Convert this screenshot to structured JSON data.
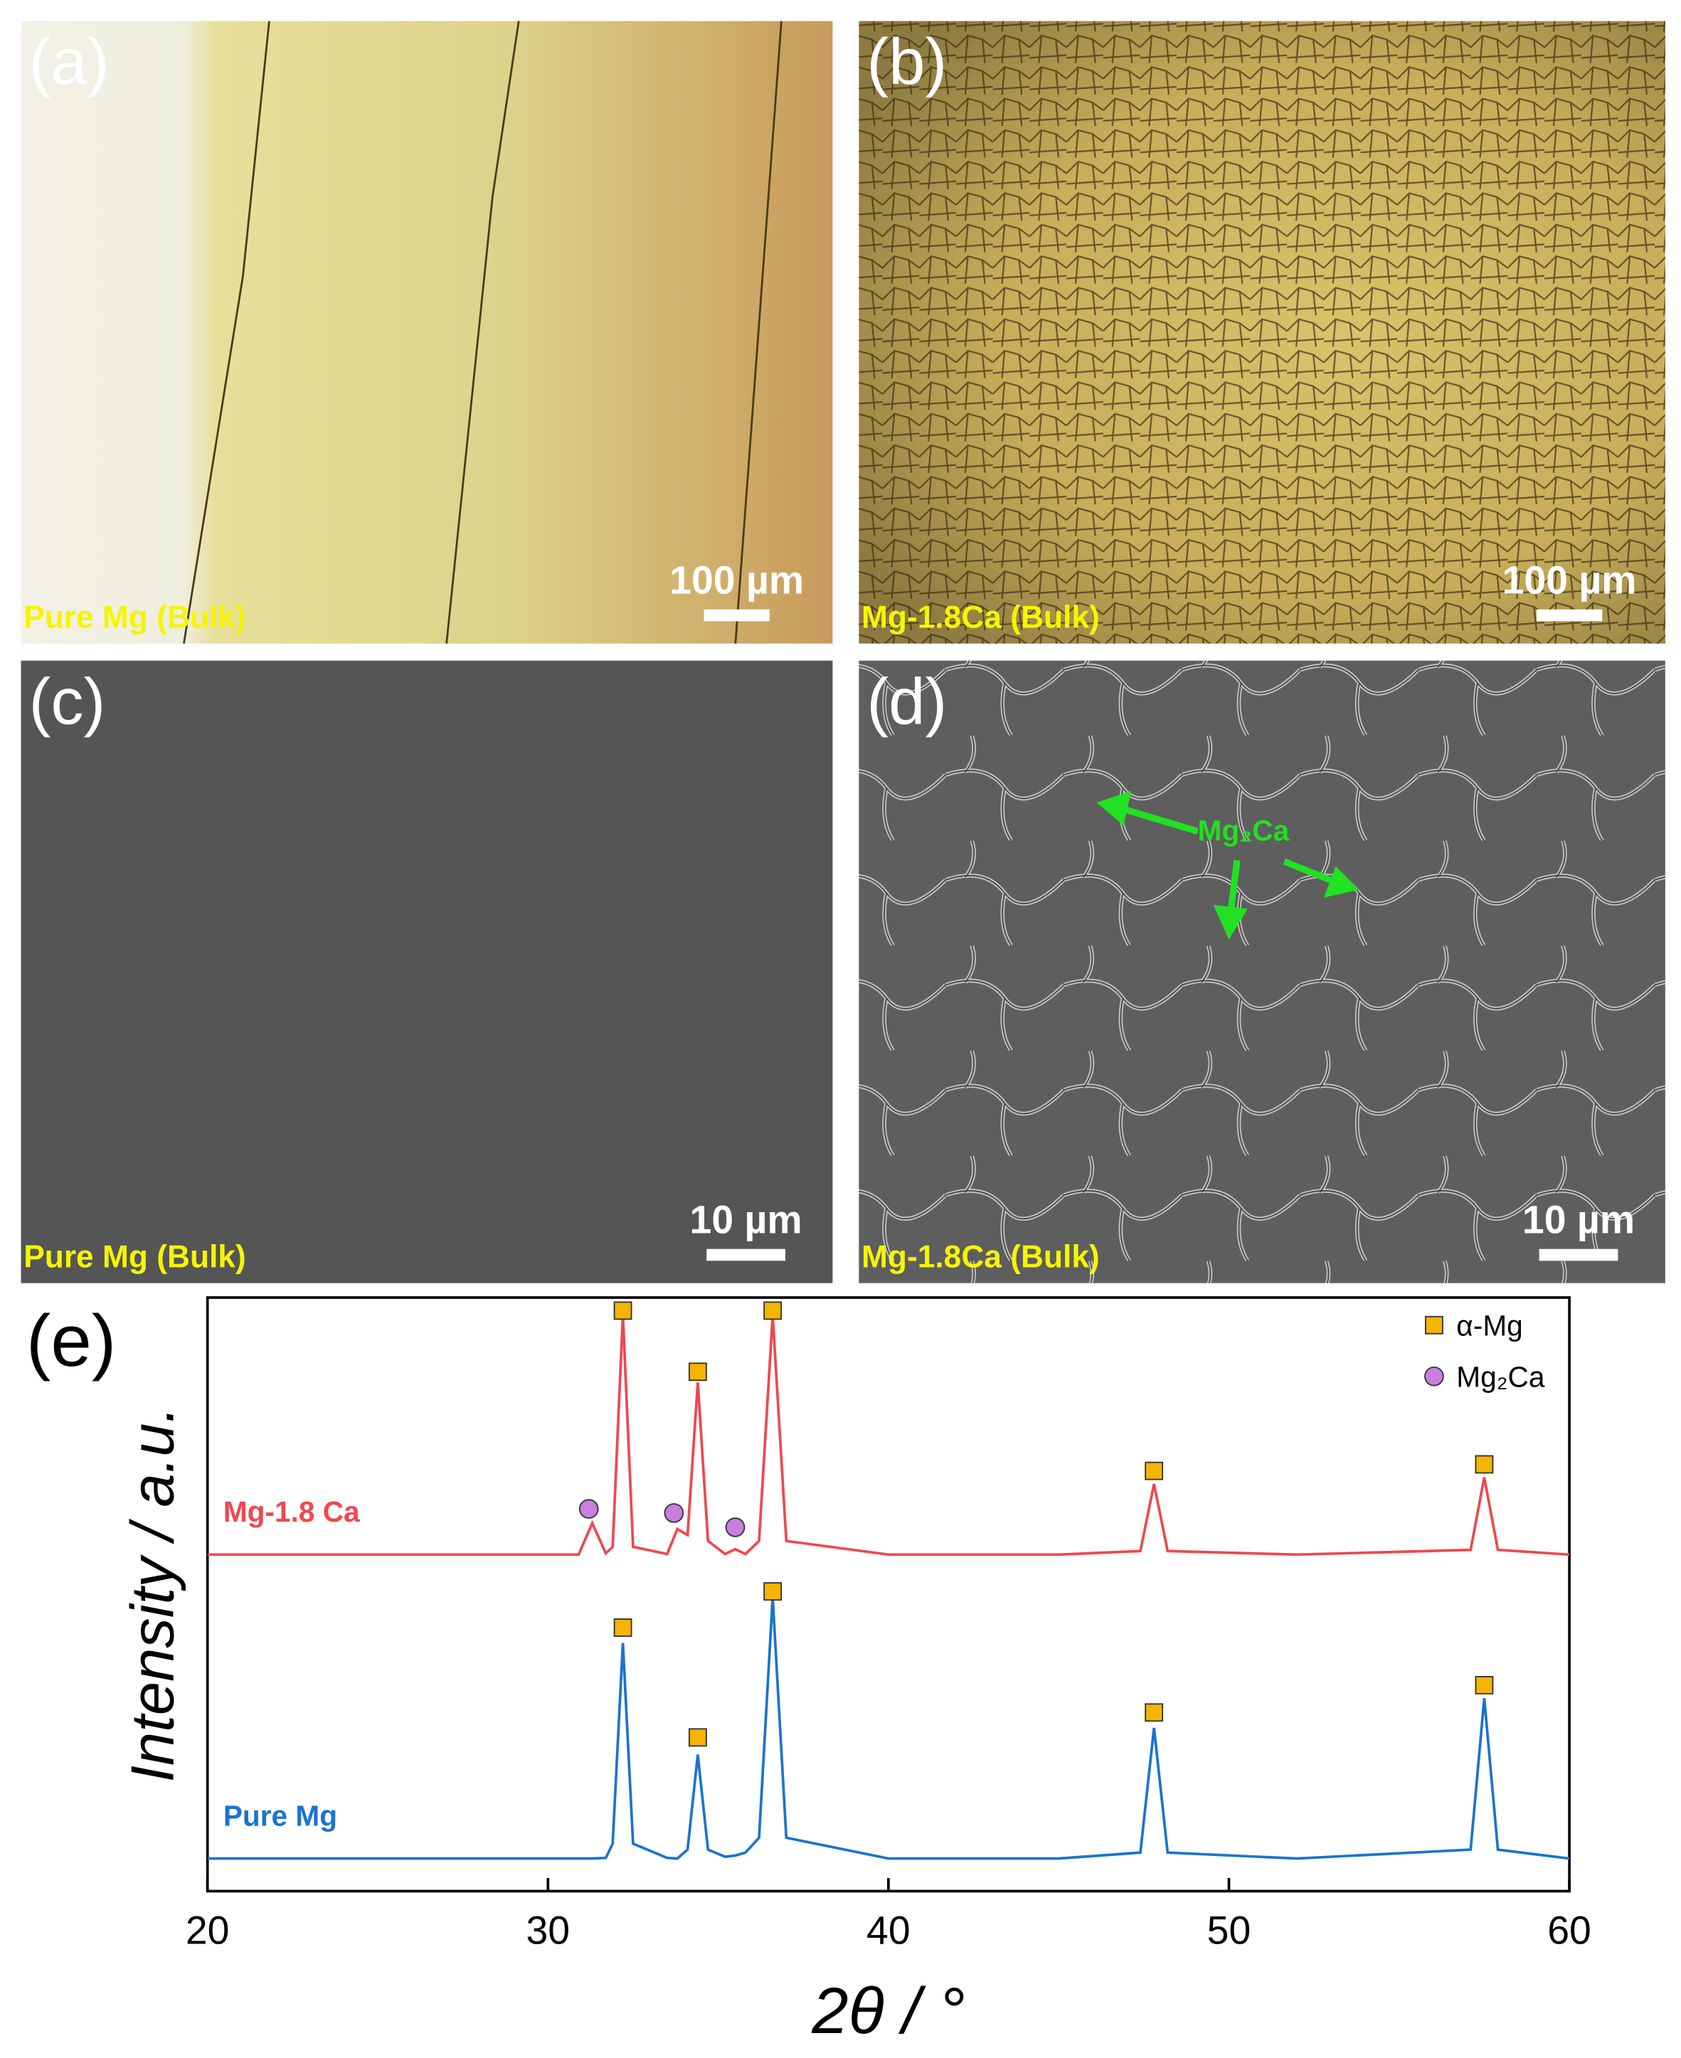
{
  "panels": [
    {
      "tag": "(a)",
      "caption": "Pure Mg (Bulk)",
      "scale": "100 µm"
    },
    {
      "tag": "(b)",
      "caption": "Mg-1.8Ca (Bulk)",
      "scale": "100 µm"
    },
    {
      "tag": "(c)",
      "caption": "Pure Mg (Bulk)",
      "scale": "10 µm"
    },
    {
      "tag": "(d)",
      "caption": "Mg-1.8Ca (Bulk)",
      "scale": "10 µm",
      "annotation": "Mg₂Ca"
    }
  ],
  "chart_data": {
    "type": "line",
    "tag": "(e)",
    "xlabel": "2θ / °",
    "ylabel": "Intensity / a.u.",
    "x": [
      20,
      25,
      30,
      30.9,
      31.3,
      31.7,
      31.9,
      32.2,
      32.5,
      33.5,
      33.8,
      34.1,
      34.4,
      34.7,
      35.2,
      35.5,
      35.8,
      36.2,
      36.6,
      37.0,
      40,
      45,
      47.4,
      47.8,
      48.2,
      52,
      57.1,
      57.5,
      57.9,
      60
    ],
    "xlim": [
      20,
      60
    ],
    "ylim": [
      0,
      100
    ],
    "xticks": [
      20,
      30,
      40,
      50,
      60
    ],
    "series": [
      {
        "name": "Mg-1.8 Ca",
        "color": "#f0474f",
        "values": [
          56.7,
          56.7,
          56.7,
          56.7,
          62,
          56.9,
          58,
          97,
          58,
          56.8,
          61,
          60,
          85.7,
          59,
          56.8,
          57.6,
          56.8,
          59,
          97,
          59,
          56.7,
          56.7,
          57.3,
          68.6,
          57.3,
          56.7,
          57.5,
          69.7,
          57.5,
          56.7
        ]
      },
      {
        "name": "Pure Mg",
        "color": "#1a73d0",
        "values": [
          5.5,
          5.5,
          5.5,
          5.5,
          5.5,
          5.6,
          8,
          41.8,
          8,
          5.6,
          5.5,
          7,
          23,
          7,
          5.8,
          6,
          6.5,
          9,
          49.5,
          9,
          5.5,
          5.5,
          6.5,
          27.5,
          6.5,
          5.5,
          7,
          32.5,
          7,
          5.5
        ]
      }
    ],
    "phases": [
      {
        "name": "α-Mg",
        "color": "#f5b400",
        "shape": "square",
        "points": [
          {
            "x": 32.2,
            "y": 97.8
          },
          {
            "x": 34.4,
            "y": 87.5
          },
          {
            "x": 36.6,
            "y": 97.8
          },
          {
            "x": 47.8,
            "y": 70.8
          },
          {
            "x": 57.5,
            "y": 71.9
          },
          {
            "x": 32.2,
            "y": 44.4
          },
          {
            "x": 34.4,
            "y": 25.9
          },
          {
            "x": 36.6,
            "y": 50.5
          },
          {
            "x": 47.8,
            "y": 30.1
          },
          {
            "x": 57.5,
            "y": 34.7
          }
        ]
      },
      {
        "name": "Mg₂Ca",
        "color": "#c77fe0",
        "shape": "circle",
        "points": [
          {
            "x": 31.2,
            "y": 64.4
          },
          {
            "x": 33.7,
            "y": 63.7
          },
          {
            "x": 35.5,
            "y": 61.3
          }
        ]
      }
    ],
    "legend": "upper right"
  }
}
